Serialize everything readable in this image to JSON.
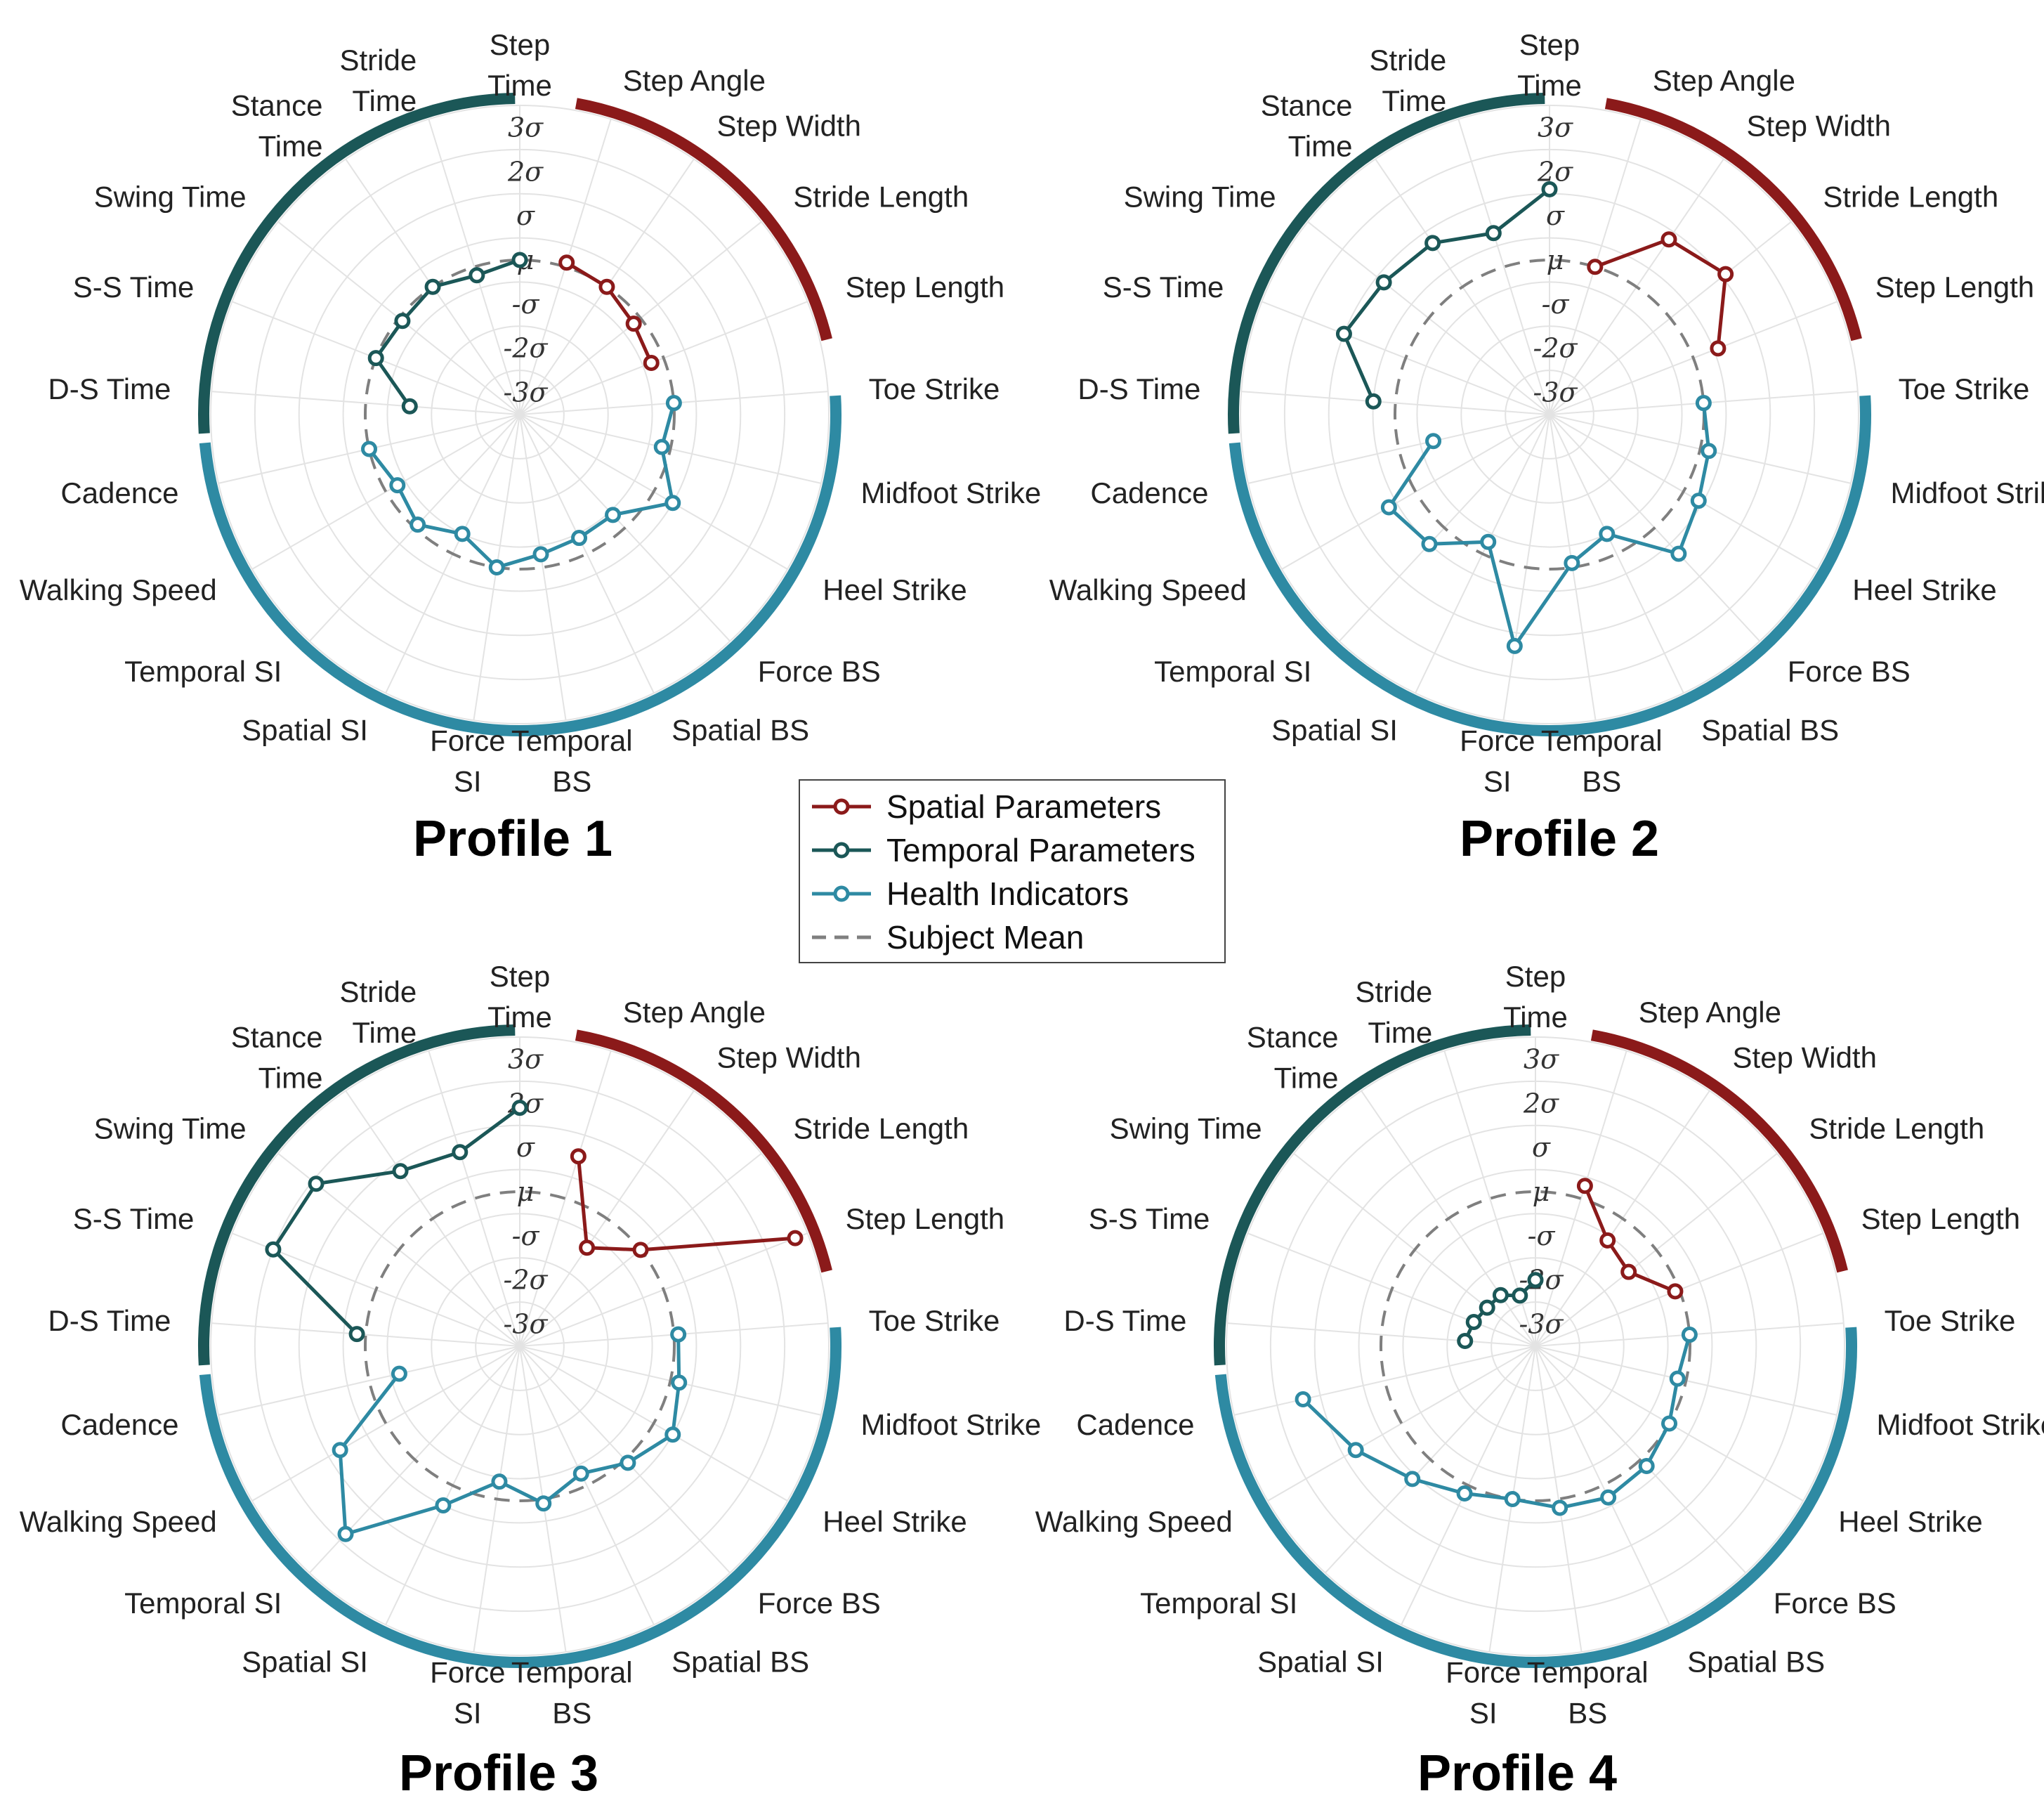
{
  "chart_data": {
    "type": "radar",
    "axis_labels": [
      "Step\nTime",
      "Step Angle",
      "Step Width",
      "Stride Length",
      "Step Length",
      "Toe Strike",
      "Midfoot Strike",
      "Heel Strike",
      "Force BS",
      "Spatial BS",
      "Temporal\nBS",
      "Force\nSI",
      "Spatial SI",
      "Temporal SI",
      "Walking Speed",
      "Cadence",
      "D-S Time",
      "S-S Time",
      "Swing Time",
      "Stance\nTime",
      "Stride\nTime"
    ],
    "radial_ticks": [
      "3σ",
      "2σ",
      "σ",
      "μ",
      "-σ",
      "-2σ",
      "-3σ"
    ],
    "radial_range": [
      -3.5,
      3.5
    ],
    "legend": [
      {
        "label": "Spatial Parameters",
        "color": "#8b1a1a",
        "style": "line-marker"
      },
      {
        "label": "Temporal Parameters",
        "color": "#1b5757",
        "style": "line-marker"
      },
      {
        "label": "Health Indicators",
        "color": "#2e8aa3",
        "style": "line-marker"
      },
      {
        "label": "Subject Mean",
        "color": "#7f7f7f",
        "style": "dashed"
      }
    ],
    "groups": [
      {
        "name": "Spatial Parameters",
        "color": "#8b1a1a",
        "axes": [
          1,
          2,
          3,
          4
        ]
      },
      {
        "name": "Temporal Parameters",
        "color": "#1b5757",
        "axes": [
          16,
          17,
          18,
          19,
          20,
          0
        ]
      },
      {
        "name": "Health Indicators",
        "color": "#2e8aa3",
        "axes": [
          5,
          6,
          7,
          8,
          9,
          10,
          11,
          12,
          13,
          14,
          15
        ]
      }
    ],
    "profiles": [
      {
        "title": "Profile 1",
        "spatial": [
          0.1,
          0.0,
          -0.2,
          -0.3
        ],
        "temporal": [
          -1.0,
          0.0,
          -0.1,
          0.0,
          -0.2,
          0.0
        ],
        "health": [
          0.0,
          -0.2,
          0.5,
          -0.4,
          -0.4,
          -0.3,
          0.0,
          -0.5,
          -0.1,
          -0.3,
          0.0
        ]
      },
      {
        "title": "Profile 2",
        "spatial": [
          0.0,
          1.3,
          1.6,
          0.6
        ],
        "temporal": [
          0.5,
          1.5,
          1.3,
          1.2,
          0.8,
          1.6
        ],
        "health": [
          0.0,
          0.2,
          0.4,
          0.8,
          -0.5,
          -0.1,
          1.8,
          -0.3,
          0.5,
          0.7,
          -0.8
        ]
      },
      {
        "title": "Profile 3",
        "spatial": [
          1.0,
          -0.8,
          0.0,
          3.2
        ],
        "temporal": [
          0.2,
          2.5,
          2.4,
          1.3,
          1.1,
          1.9
        ],
        "health": [
          0.1,
          0.2,
          0.5,
          0.1,
          -0.3,
          0.1,
          -0.4,
          0.5,
          2.3,
          1.2,
          -0.7
        ]
      },
      {
        "title": "Profile 4",
        "spatial": [
          0.3,
          -0.6,
          -0.8,
          -0.1
        ],
        "temporal": [
          -1.9,
          -2.0,
          -2.1,
          -2.1,
          -2.3,
          -2.0
        ],
        "health": [
          0.0,
          -0.2,
          0.0,
          0.2,
          0.3,
          0.2,
          0.0,
          0.2,
          0.6,
          1.2,
          1.9
        ]
      }
    ]
  }
}
